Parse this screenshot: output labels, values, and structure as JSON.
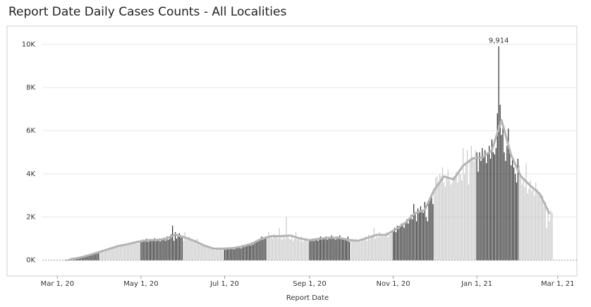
{
  "chart_data": {
    "type": "bar",
    "title": "Report Date Daily Cases Counts - All Localities",
    "x_label": "Report Date",
    "x_start": "2020-03-07",
    "colors": [
      "#2a2a2a",
      "#c8c8c8"
    ],
    "values": [
      20,
      25,
      30,
      40,
      45,
      60,
      70,
      80,
      90,
      110,
      100,
      130,
      150,
      140,
      170,
      200,
      210,
      230,
      250,
      260,
      300,
      280,
      320,
      350,
      400,
      380,
      420,
      450,
      460,
      430,
      500,
      520,
      480,
      550,
      600,
      580,
      620,
      650,
      600,
      700,
      680,
      720,
      700,
      750,
      680,
      780,
      720,
      800,
      760,
      820,
      780,
      850,
      900,
      760,
      880,
      920,
      950,
      870,
      900,
      1000,
      850,
      920,
      980,
      900,
      960,
      1020,
      880,
      940,
      1000,
      870,
      920,
      980,
      1050,
      900,
      1100,
      950,
      1000,
      1200,
      1600,
      900,
      1300,
      1000,
      1100,
      1250,
      1050,
      1100,
      900,
      1300,
      1000,
      950,
      1100,
      1000,
      900,
      950,
      850,
      800,
      1000,
      750,
      700,
      800,
      650,
      750,
      600,
      700,
      550,
      600,
      500,
      550,
      600,
      450,
      550,
      500,
      550,
      500,
      600,
      520,
      480,
      560,
      530,
      520,
      580,
      550,
      600,
      500,
      620,
      580,
      600,
      650,
      550,
      700,
      620,
      680,
      640,
      700,
      750,
      680,
      800,
      720,
      850,
      900,
      950,
      900,
      1000,
      1100,
      950,
      1050,
      1000,
      1000,
      1300,
      1050,
      1100,
      1000,
      1200,
      1150,
      1100,
      1000,
      1500,
      1050,
      950,
      1200,
      1000,
      2000,
      1100,
      1000,
      950,
      1050,
      900,
      1000,
      1300,
      950,
      1000,
      900,
      1100,
      850,
      950,
      900,
      1000,
      850,
      950,
      900,
      1000,
      880,
      950,
      1000,
      900,
      1050,
      1100,
      950,
      1000,
      1000,
      1100,
      950,
      1050,
      1000,
      1150,
      1000,
      1000,
      950,
      1100,
      1000,
      1150,
      1050,
      1000,
      950,
      1000,
      900,
      1100,
      850,
      950,
      900,
      900,
      850,
      1000,
      800,
      950,
      850,
      900,
      950,
      1000,
      1100,
      900,
      1200,
      1000,
      1050,
      1100,
      1500,
      1000,
      1200,
      1050,
      1300,
      1100,
      1150,
      1100,
      1200,
      1300,
      1050,
      1250,
      1200,
      1300,
      1400,
      1500,
      1300,
      1600,
      1450,
      1550,
      1700,
      1600,
      1500,
      1800,
      1900,
      1700,
      2000,
      2100,
      1900,
      2600,
      2200,
      1800,
      2400,
      2300,
      2500,
      2300,
      2200,
      2700,
      2000,
      1800,
      2800,
      2900,
      3000,
      2600,
      3200,
      3800,
      3900,
      3500,
      4000,
      3900,
      4300,
      3600,
      3400,
      3800,
      4200,
      3700,
      3500,
      3600,
      3900,
      3800,
      4100,
      3600,
      4200,
      4000,
      3700,
      5200,
      4000,
      4500,
      5100,
      3500,
      4700,
      5300,
      4800,
      4600,
      5100,
      5000,
      4100,
      5000,
      4600,
      5200,
      4800,
      5100,
      4500,
      5000,
      5300,
      4700,
      5600,
      5000,
      4900,
      5200,
      6800,
      9914,
      7200,
      5800,
      6200,
      5000,
      4600,
      5300,
      6100,
      5200,
      4400,
      4800,
      4300,
      4000,
      3600,
      4700,
      4400,
      3900,
      3500,
      3800,
      3400,
      4500,
      3100,
      3300,
      3700,
      3200,
      3400,
      3000,
      3600,
      3300,
      3200,
      3100,
      2800,
      3000,
      2500,
      2700,
      1500,
      2400,
      1800,
      2300,
      2200
    ],
    "average": {
      "x_start": "2020-03-10",
      "x_step_days": 7,
      "color": "#b4b4b4",
      "values": [
        41,
        114,
        231,
        371,
        506,
        650,
        741,
        844,
        924,
        939,
        986,
        1193,
        1057,
        893,
        679,
        536,
        534,
        564,
        634,
        771,
        993,
        1114,
        1114,
        1143,
        1007,
        926,
        993,
        1036,
        1036,
        950,
        893,
        1029,
        1179,
        1179,
        1443,
        1743,
        2186,
        2329,
        3271,
        3886,
        3743,
        4386,
        4714,
        4757,
        5100,
        6500,
        4871,
        3900,
        3457,
        3071,
        2150
      ]
    },
    "annotations": [
      {
        "text": "9,914",
        "date": "2021-01-17",
        "value": 9914
      }
    ],
    "xlim": [
      "2020-02-19",
      "2021-03-15"
    ],
    "xticks": [
      {
        "value": "2020-03-01",
        "label": "Mar 1, 20"
      },
      {
        "value": "2020-05-01",
        "label": "May 1, 20"
      },
      {
        "value": "2020-07-01",
        "label": "Jul 1, 20"
      },
      {
        "value": "2020-09-01",
        "label": "Sep 1, 20"
      },
      {
        "value": "2020-11-01",
        "label": "Nov 1, 20"
      },
      {
        "value": "2021-01-01",
        "label": "Jan 1, 21"
      },
      {
        "value": "2021-03-01",
        "label": "Mar 1, 21"
      }
    ],
    "ylim": [
      -500,
      10750
    ],
    "yticks": [
      {
        "value": 0,
        "label": "0K"
      },
      {
        "value": 2000,
        "label": "2K"
      },
      {
        "value": 4000,
        "label": "4K"
      },
      {
        "value": 6000,
        "label": "6K"
      },
      {
        "value": 8000,
        "label": "8K"
      },
      {
        "value": 10000,
        "label": "10K"
      }
    ],
    "grid": true
  }
}
